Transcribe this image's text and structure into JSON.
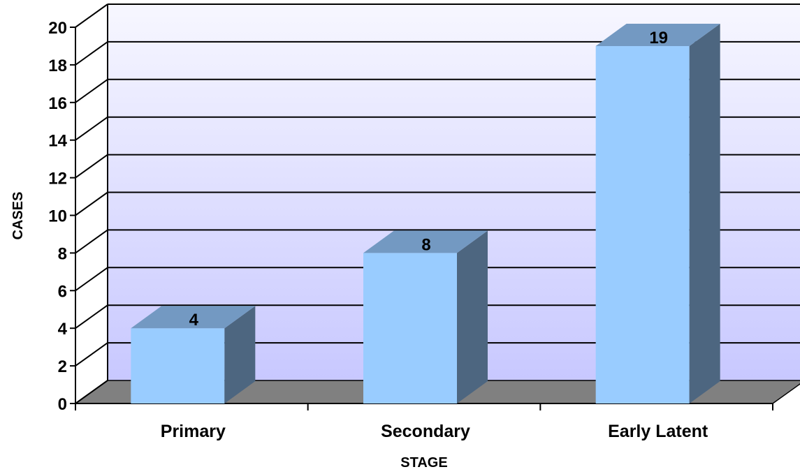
{
  "chart_data": {
    "type": "bar",
    "title": "",
    "xlabel": "STAGE",
    "ylabel": "CASES",
    "categories": [
      "Primary",
      "Secondary",
      "Early Latent"
    ],
    "values": [
      4,
      8,
      19
    ],
    "data_labels": [
      "4",
      "8",
      "19"
    ],
    "ylim": [
      0,
      20
    ],
    "yticks": [
      0,
      2,
      4,
      6,
      8,
      10,
      12,
      14,
      16,
      18,
      20
    ],
    "grid": true,
    "legend": "none",
    "style": "3d-column"
  },
  "colors": {
    "background_top": "#f7f7ff",
    "background_bottom": "#c8c8ff",
    "floor": "#808080",
    "bar_front": "#99ccff",
    "bar_top": "#7399c2",
    "bar_side": "#4d6680",
    "grid": "#000000",
    "text": "#000000"
  }
}
